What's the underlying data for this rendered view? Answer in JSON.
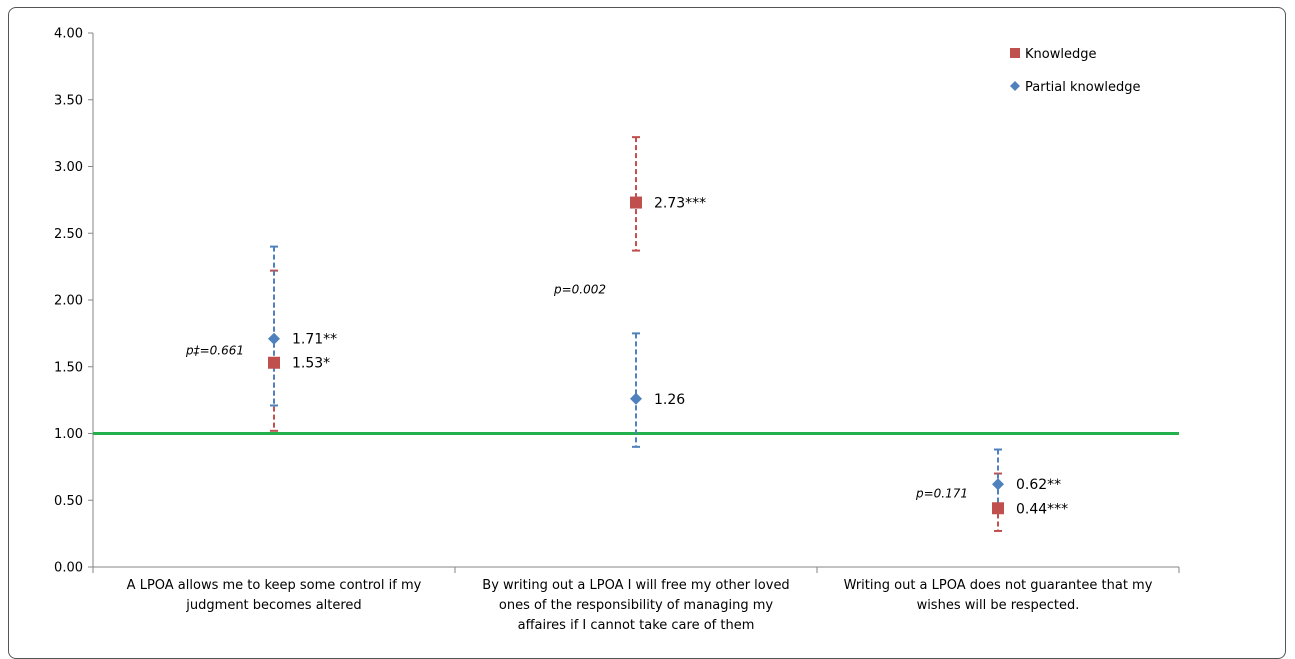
{
  "chart_data": {
    "type": "scatter",
    "ylim": [
      0,
      4
    ],
    "yticks": [
      "0.00",
      "0.50",
      "1.00",
      "1.50",
      "2.00",
      "2.50",
      "3.00",
      "3.50",
      "4.00"
    ],
    "categories": [
      [
        "A LPOA allows me to keep some control if my",
        "judgment becomes altered"
      ],
      [
        "By writing out a LPOA I will free my other loved",
        "ones of the responsibility of managing my",
        "affaires if I cannot take care of them"
      ],
      [
        "Writing out a LPOA does not guarantee that my",
        "wishes will be respected."
      ]
    ],
    "series": [
      {
        "name": "Knowledge",
        "color": "#c0504d",
        "marker": "square",
        "values": [
          1.53,
          2.73,
          0.44
        ],
        "err_low": [
          1.02,
          2.37,
          0.27
        ],
        "err_high": [
          2.22,
          3.22,
          0.7
        ],
        "labels": [
          "1.53*",
          "2.73***",
          "0.44***"
        ]
      },
      {
        "name": "Partial knowledge",
        "color": "#4f81bd",
        "marker": "diamond",
        "values": [
          1.71,
          1.26,
          0.62
        ],
        "err_low": [
          1.21,
          0.9,
          0.44
        ],
        "err_high": [
          2.4,
          1.75,
          0.88
        ],
        "labels": [
          "1.71**",
          "1.26",
          "0.62**"
        ]
      }
    ],
    "reference_line": {
      "value": 1.0,
      "color": "#22b14c"
    },
    "annotations": [
      {
        "category": 0,
        "text": "p‡=0.661",
        "y": 1.62
      },
      {
        "category": 1,
        "text": "p=0.002",
        "y": 2.08
      },
      {
        "category": 2,
        "text": "p=0.171",
        "y": 0.55
      }
    ],
    "legend": "top-right",
    "grid": false
  }
}
